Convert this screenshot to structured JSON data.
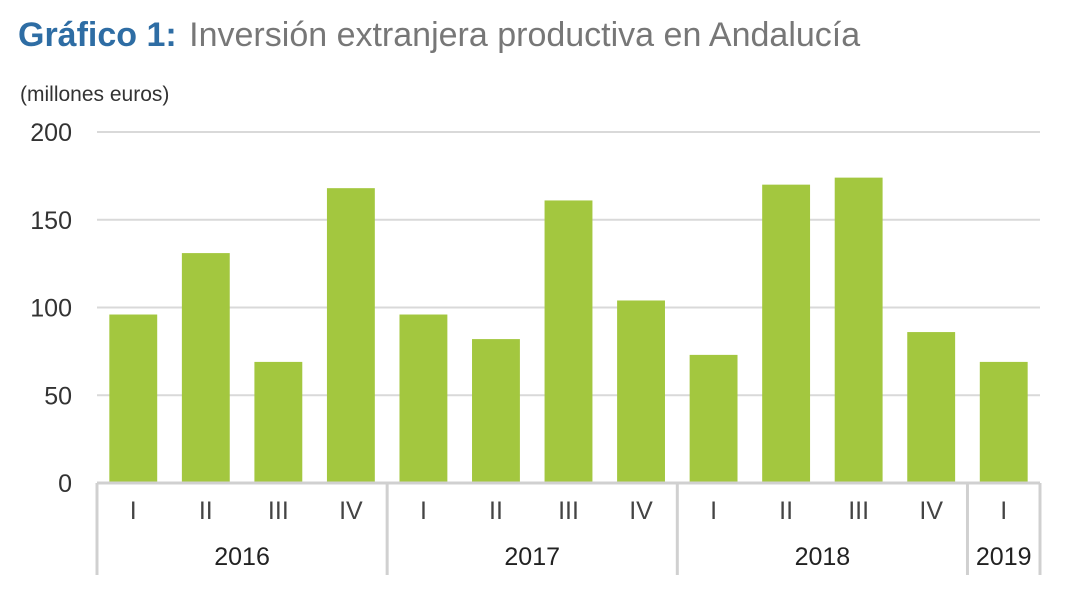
{
  "title_prefix": "Gráfico 1:",
  "title_main": "Inversión extranjera productiva en Andalucía",
  "colors": {
    "title_prefix": "#2e6da4",
    "title_main": "#777777",
    "bar": "#a3c73f",
    "grid": "#d9d9d9",
    "axis": "#d0d0d0"
  },
  "chart_data": {
    "type": "bar",
    "ylabel": "(millones euros)",
    "ylim": [
      0,
      200
    ],
    "yticks": [
      0,
      50,
      100,
      150,
      200
    ],
    "grid": true,
    "categories": [
      "I",
      "II",
      "III",
      "IV",
      "I",
      "II",
      "III",
      "IV",
      "I",
      "II",
      "III",
      "IV",
      "I"
    ],
    "groups": [
      {
        "label": "2016",
        "count": 4
      },
      {
        "label": "2017",
        "count": 4
      },
      {
        "label": "2018",
        "count": 4
      },
      {
        "label": "2019",
        "count": 1
      }
    ],
    "values": [
      96,
      131,
      69,
      168,
      96,
      82,
      161,
      104,
      73,
      170,
      174,
      86,
      69
    ]
  }
}
